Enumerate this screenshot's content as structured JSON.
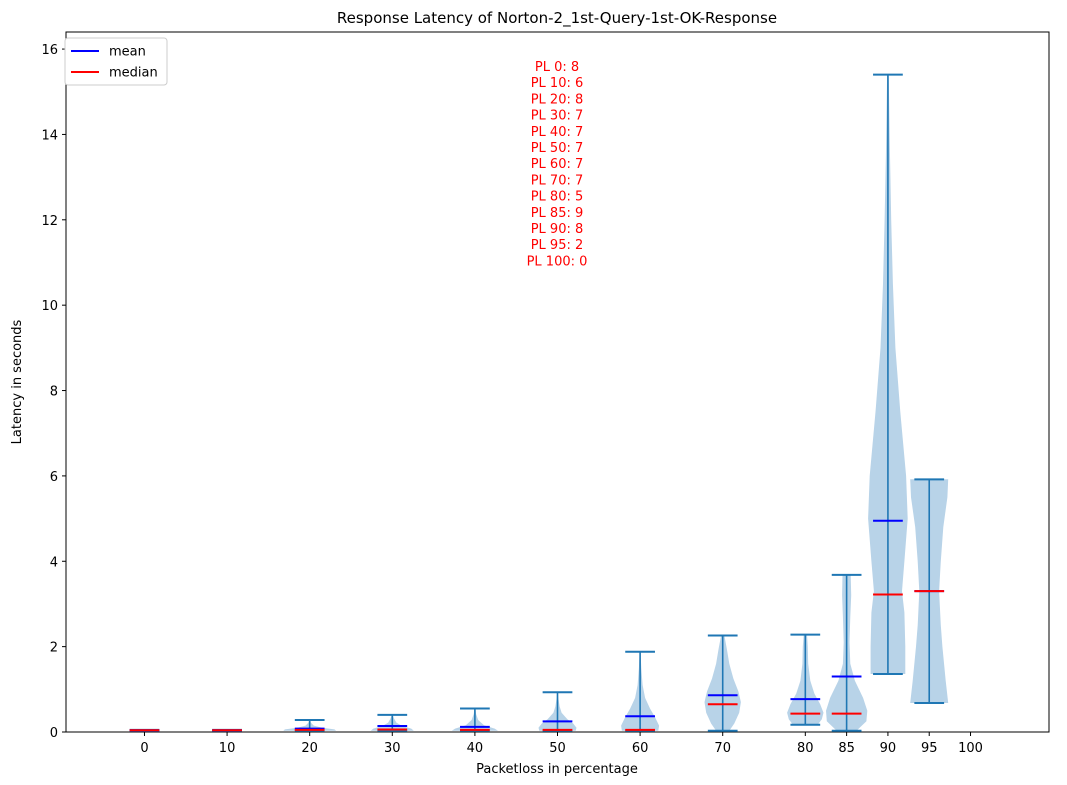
{
  "chart_data": {
    "type": "violin",
    "title": "Response Latency of Norton-2_1st-Query-1st-OK-Response",
    "xlabel": "Packetloss in percentage",
    "ylabel": "Latency in seconds",
    "ylim": [
      0,
      16.4
    ],
    "yticks": [
      0,
      2,
      4,
      6,
      8,
      10,
      12,
      14,
      16
    ],
    "x_ticks": [
      0,
      10,
      20,
      30,
      40,
      50,
      60,
      70,
      80,
      85,
      90,
      95,
      100
    ],
    "legend": {
      "placement": "top-left",
      "entries": [
        {
          "label": "mean",
          "color": "#0000ff"
        },
        {
          "label": "median",
          "color": "#ff0000"
        }
      ]
    },
    "colors": {
      "body": "#b8d3e8",
      "whisker": "#1f77b4",
      "mean": "#0000ff",
      "median": "#ff0000",
      "annotation": "#ff0000"
    },
    "annotation_lines": [
      "PL 0: 8",
      "PL 10: 6",
      "PL 20: 8",
      "PL 30: 7",
      "PL 40: 7",
      "PL 50: 7",
      "PL 60: 7",
      "PL 70: 7",
      "PL 80: 5",
      "PL 85: 9",
      "PL 90: 8",
      "PL 95: 2",
      "PL 100: 0"
    ],
    "violins": [
      {
        "x": 0,
        "min": 0.03,
        "max": 0.05,
        "mean": 0.04,
        "median": 0.04,
        "profile": [
          [
            0.03,
            0.2
          ],
          [
            0.05,
            0.2
          ]
        ]
      },
      {
        "x": 10,
        "min": 0.03,
        "max": 0.05,
        "mean": 0.04,
        "median": 0.04,
        "profile": [
          [
            0.03,
            0.2
          ],
          [
            0.05,
            0.2
          ]
        ]
      },
      {
        "x": 20,
        "min": 0.03,
        "max": 0.28,
        "mean": 0.08,
        "median": 0.05,
        "profile": [
          [
            0.03,
            3.2
          ],
          [
            0.06,
            3.0
          ],
          [
            0.1,
            1.5
          ],
          [
            0.15,
            0.5
          ],
          [
            0.22,
            0.15
          ],
          [
            0.28,
            0.05
          ]
        ]
      },
      {
        "x": 30,
        "min": 0.03,
        "max": 0.4,
        "mean": 0.14,
        "median": 0.06,
        "profile": [
          [
            0.03,
            2.6
          ],
          [
            0.08,
            2.3
          ],
          [
            0.14,
            1.2
          ],
          [
            0.22,
            0.5
          ],
          [
            0.32,
            0.2
          ],
          [
            0.4,
            0.05
          ]
        ]
      },
      {
        "x": 40,
        "min": 0.03,
        "max": 0.55,
        "mean": 0.12,
        "median": 0.05,
        "profile": [
          [
            0.03,
            2.8
          ],
          [
            0.08,
            2.4
          ],
          [
            0.16,
            1.1
          ],
          [
            0.28,
            0.4
          ],
          [
            0.42,
            0.15
          ],
          [
            0.55,
            0.05
          ]
        ]
      },
      {
        "x": 50,
        "min": 0.03,
        "max": 0.93,
        "mean": 0.25,
        "median": 0.05,
        "profile": [
          [
            0.03,
            2.2
          ],
          [
            0.1,
            2.3
          ],
          [
            0.2,
            1.9
          ],
          [
            0.3,
            1.2
          ],
          [
            0.45,
            0.5
          ],
          [
            0.6,
            0.25
          ],
          [
            0.8,
            0.1
          ],
          [
            0.93,
            0.05
          ]
        ]
      },
      {
        "x": 60,
        "min": 0.03,
        "max": 1.88,
        "mean": 0.37,
        "median": 0.05,
        "profile": [
          [
            0.03,
            2.2
          ],
          [
            0.15,
            2.3
          ],
          [
            0.35,
            1.8
          ],
          [
            0.55,
            1.2
          ],
          [
            0.8,
            0.6
          ],
          [
            1.1,
            0.3
          ],
          [
            1.5,
            0.15
          ],
          [
            1.88,
            0.05
          ]
        ]
      },
      {
        "x": 70,
        "min": 0.03,
        "max": 2.26,
        "mean": 0.86,
        "median": 0.65,
        "profile": [
          [
            0.03,
            0.8
          ],
          [
            0.2,
            1.4
          ],
          [
            0.45,
            2.0
          ],
          [
            0.7,
            2.2
          ],
          [
            0.95,
            1.9
          ],
          [
            1.25,
            1.3
          ],
          [
            1.6,
            0.8
          ],
          [
            1.95,
            0.5
          ],
          [
            2.26,
            0.2
          ]
        ]
      },
      {
        "x": 80,
        "min": 0.17,
        "max": 2.28,
        "mean": 0.77,
        "median": 0.43,
        "profile": [
          [
            0.17,
            1.5
          ],
          [
            0.3,
            2.0
          ],
          [
            0.45,
            2.2
          ],
          [
            0.65,
            1.8
          ],
          [
            0.9,
            1.1
          ],
          [
            1.2,
            0.6
          ],
          [
            1.6,
            0.35
          ],
          [
            2.0,
            0.3
          ],
          [
            2.28,
            0.2
          ]
        ]
      },
      {
        "x": 85,
        "min": 0.03,
        "max": 3.68,
        "mean": 1.3,
        "median": 0.43,
        "profile": [
          [
            0.03,
            1.2
          ],
          [
            0.25,
            2.4
          ],
          [
            0.5,
            2.5
          ],
          [
            0.8,
            2.0
          ],
          [
            1.2,
            1.0
          ],
          [
            1.6,
            0.45
          ],
          [
            2.1,
            0.35
          ],
          [
            2.7,
            0.45
          ],
          [
            3.2,
            0.55
          ],
          [
            3.68,
            0.5
          ]
        ]
      },
      {
        "x": 90,
        "min": 1.36,
        "max": 15.4,
        "mean": 4.95,
        "median": 3.22,
        "profile": [
          [
            1.36,
            2.1
          ],
          [
            2.0,
            2.1
          ],
          [
            2.8,
            2.0
          ],
          [
            3.3,
            1.7
          ],
          [
            4.0,
            2.0
          ],
          [
            5.0,
            2.4
          ],
          [
            6.0,
            2.2
          ],
          [
            7.5,
            1.5
          ],
          [
            9.0,
            0.9
          ],
          [
            10.5,
            0.6
          ],
          [
            12.0,
            0.4
          ],
          [
            13.5,
            0.25
          ],
          [
            15.4,
            0.1
          ]
        ]
      },
      {
        "x": 95,
        "min": 0.68,
        "max": 5.92,
        "mean": 3.3,
        "median": 3.3,
        "profile": [
          [
            0.68,
            2.3
          ],
          [
            1.2,
            2.0
          ],
          [
            2.0,
            1.6
          ],
          [
            2.5,
            1.4
          ],
          [
            3.3,
            1.2
          ],
          [
            4.0,
            1.4
          ],
          [
            4.8,
            1.7
          ],
          [
            5.5,
            2.2
          ],
          [
            5.92,
            2.3
          ]
        ]
      }
    ]
  }
}
